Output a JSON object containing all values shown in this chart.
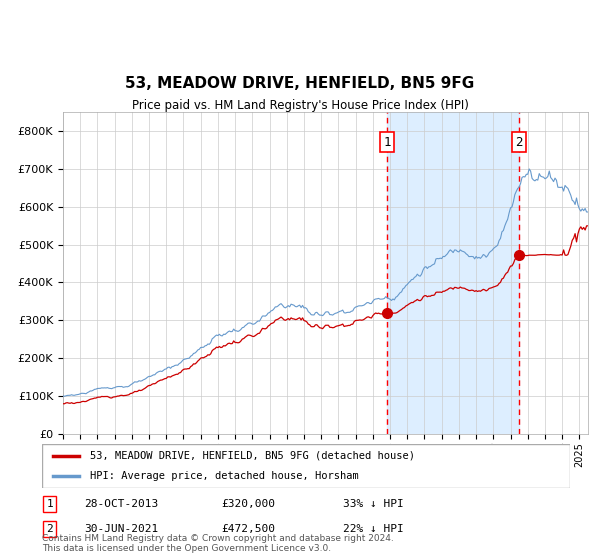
{
  "title": "53, MEADOW DRIVE, HENFIELD, BN5 9FG",
  "subtitle": "Price paid vs. HM Land Registry's House Price Index (HPI)",
  "background_color": "#ffffff",
  "plot_bg_color": "#ffffff",
  "shaded_bg_color": "#ddeeff",
  "hpi_color": "#6699cc",
  "price_color": "#cc0000",
  "grid_color": "#cccccc",
  "purchase1": {
    "date_num": 2013.83,
    "price": 320000,
    "label": "1"
  },
  "purchase2": {
    "date_num": 2021.5,
    "price": 472500,
    "label": "2"
  },
  "legend_entries": [
    "53, MEADOW DRIVE, HENFIELD, BN5 9FG (detached house)",
    "HPI: Average price, detached house, Horsham"
  ],
  "table": [
    {
      "num": "1",
      "date": "28-OCT-2013",
      "price": "£320,000",
      "note": "33% ↓ HPI"
    },
    {
      "num": "2",
      "date": "30-JUN-2021",
      "price": "£472,500",
      "note": "22% ↓ HPI"
    }
  ],
  "footer": "Contains HM Land Registry data © Crown copyright and database right 2024.\nThis data is licensed under the Open Government Licence v3.0.",
  "ylim": [
    0,
    850000
  ],
  "xlim_start": 1995.0,
  "xlim_end": 2025.5
}
